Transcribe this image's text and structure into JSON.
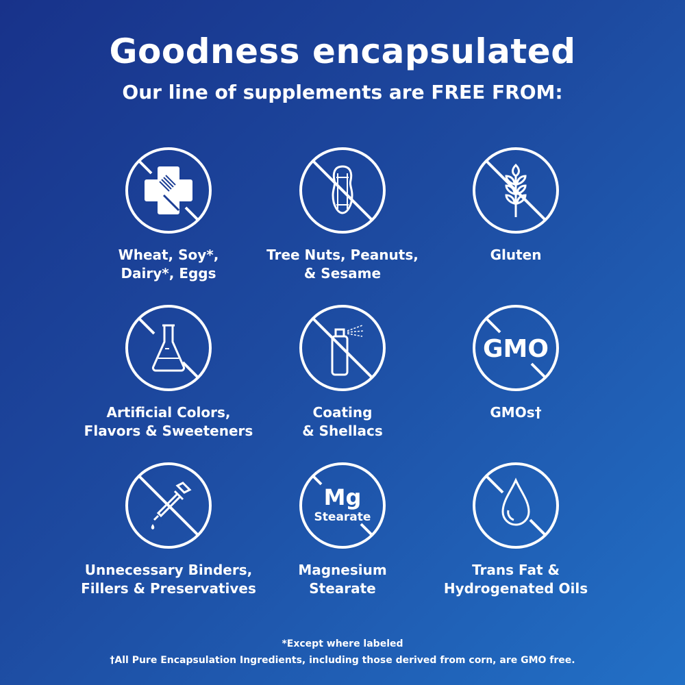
{
  "header": {
    "title": "Goodness encapsulated",
    "subtitle": "Our line of supplements are FREE FROM:"
  },
  "items": [
    {
      "icon": "allergen-cross-fork-icon",
      "line1": "Wheat, Soy*,",
      "line2": "Dairy*, Eggs"
    },
    {
      "icon": "peanut-icon",
      "line1": "Tree Nuts, Peanuts,",
      "line2": "& Sesame"
    },
    {
      "icon": "wheat-icon",
      "line1": "Gluten",
      "line2": ""
    },
    {
      "icon": "flask-icon",
      "line1": "Artificial Colors,",
      "line2": "Flavors & Sweeteners"
    },
    {
      "icon": "spray-can-icon",
      "line1": "Coating",
      "line2": "& Shellacs"
    },
    {
      "icon": "gmo-icon",
      "icon_text": "GMO",
      "line1": "GMOs†",
      "line2": ""
    },
    {
      "icon": "dropper-icon",
      "line1": "Unnecessary Binders,",
      "line2": "Fillers & Preservatives"
    },
    {
      "icon": "mg-stearate-icon",
      "icon_text": "Mg",
      "icon_subtext": "Stearate",
      "line1": "Magnesium",
      "line2": "Stearate"
    },
    {
      "icon": "oil-drop-icon",
      "line1": "Trans Fat &",
      "line2": "Hydrogenated Oils"
    }
  ],
  "footer": {
    "note1": "*Except where labeled",
    "note2": "†All Pure Encapsulation Ingredients, including those derived from corn, are GMO free."
  },
  "colors": {
    "bg_start": "#18328a",
    "bg_end": "#2270c6",
    "fg": "#ffffff"
  }
}
